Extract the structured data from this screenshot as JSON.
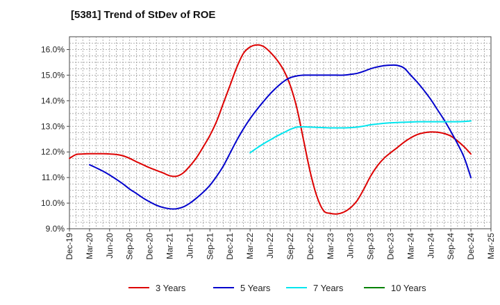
{
  "chart_data": {
    "type": "line",
    "title": "[5381]  Trend of StDev of ROE",
    "xlabel": "",
    "ylabel": "",
    "x_ticks": [
      "Dec-19",
      "Mar-20",
      "Jun-20",
      "Sep-20",
      "Dec-20",
      "Mar-21",
      "Jun-21",
      "Sep-21",
      "Dec-21",
      "Mar-22",
      "Jun-22",
      "Sep-22",
      "Dec-22",
      "Mar-23",
      "Jun-23",
      "Sep-23",
      "Dec-23",
      "Mar-24",
      "Jun-24",
      "Sep-24",
      "Dec-24",
      "Mar-25"
    ],
    "y_ticks": [
      "9.0%",
      "10.0%",
      "11.0%",
      "12.0%",
      "13.0%",
      "14.0%",
      "15.0%",
      "16.0%"
    ],
    "ylim": [
      9.0,
      16.5
    ],
    "grid": true,
    "legend_position": "bottom",
    "series": [
      {
        "name": "3 Years",
        "color": "#dd0000",
        "points": [
          [
            "Dec-19",
            11.75
          ],
          [
            "Jan-20",
            11.9
          ],
          [
            "Feb-20",
            11.92
          ],
          [
            "Mar-20",
            11.93
          ],
          [
            "Apr-20",
            11.93
          ],
          [
            "May-20",
            11.93
          ],
          [
            "Jun-20",
            11.92
          ],
          [
            "Jul-20",
            11.9
          ],
          [
            "Aug-20",
            11.85
          ],
          [
            "Sep-20",
            11.75
          ],
          [
            "Oct-20",
            11.62
          ],
          [
            "Nov-20",
            11.5
          ],
          [
            "Dec-20",
            11.38
          ],
          [
            "Jan-21",
            11.28
          ],
          [
            "Feb-21",
            11.18
          ],
          [
            "Mar-21",
            11.07
          ],
          [
            "Apr-21",
            11.05
          ],
          [
            "May-21",
            11.18
          ],
          [
            "Jun-21",
            11.45
          ],
          [
            "Jul-21",
            11.78
          ],
          [
            "Aug-21",
            12.2
          ],
          [
            "Sep-21",
            12.65
          ],
          [
            "Oct-21",
            13.2
          ],
          [
            "Nov-21",
            13.9
          ],
          [
            "Dec-21",
            14.6
          ],
          [
            "Jan-22",
            15.3
          ],
          [
            "Feb-22",
            15.85
          ],
          [
            "Mar-22",
            16.1
          ],
          [
            "Apr-22",
            16.18
          ],
          [
            "May-22",
            16.12
          ],
          [
            "Jun-22",
            15.9
          ],
          [
            "Jul-22",
            15.6
          ],
          [
            "Aug-22",
            15.2
          ],
          [
            "Sep-22",
            14.6
          ],
          [
            "Oct-22",
            13.7
          ],
          [
            "Nov-22",
            12.45
          ],
          [
            "Dec-22",
            11.2
          ],
          [
            "Jan-23",
            10.25
          ],
          [
            "Feb-23",
            9.7
          ],
          [
            "Mar-23",
            9.6
          ],
          [
            "Apr-23",
            9.58
          ],
          [
            "May-23",
            9.65
          ],
          [
            "Jun-23",
            9.82
          ],
          [
            "Jul-23",
            10.1
          ],
          [
            "Aug-23",
            10.55
          ],
          [
            "Sep-23",
            11.05
          ],
          [
            "Oct-23",
            11.45
          ],
          [
            "Nov-23",
            11.75
          ],
          [
            "Dec-23",
            11.97
          ],
          [
            "Jan-24",
            12.17
          ],
          [
            "Feb-24",
            12.38
          ],
          [
            "Mar-24",
            12.55
          ],
          [
            "Apr-24",
            12.68
          ],
          [
            "May-24",
            12.75
          ],
          [
            "Jun-24",
            12.78
          ],
          [
            "Jul-24",
            12.77
          ],
          [
            "Aug-24",
            12.72
          ],
          [
            "Sep-24",
            12.62
          ],
          [
            "Oct-24",
            12.43
          ],
          [
            "Nov-24",
            12.2
          ],
          [
            "Dec-24",
            11.92
          ]
        ]
      },
      {
        "name": "5 Years",
        "color": "#0000cc",
        "points": [
          [
            "Mar-20",
            11.5
          ],
          [
            "Apr-20",
            11.38
          ],
          [
            "May-20",
            11.25
          ],
          [
            "Jun-20",
            11.1
          ],
          [
            "Jul-20",
            10.93
          ],
          [
            "Aug-20",
            10.75
          ],
          [
            "Sep-20",
            10.55
          ],
          [
            "Oct-20",
            10.38
          ],
          [
            "Nov-20",
            10.2
          ],
          [
            "Dec-20",
            10.05
          ],
          [
            "Jan-21",
            9.92
          ],
          [
            "Feb-21",
            9.83
          ],
          [
            "Mar-21",
            9.78
          ],
          [
            "Apr-21",
            9.78
          ],
          [
            "May-21",
            9.85
          ],
          [
            "Jun-21",
            10.0
          ],
          [
            "Jul-21",
            10.2
          ],
          [
            "Aug-21",
            10.43
          ],
          [
            "Sep-21",
            10.7
          ],
          [
            "Oct-21",
            11.05
          ],
          [
            "Nov-21",
            11.45
          ],
          [
            "Dec-21",
            11.95
          ],
          [
            "Jan-22",
            12.45
          ],
          [
            "Feb-22",
            12.9
          ],
          [
            "Mar-22",
            13.3
          ],
          [
            "Apr-22",
            13.65
          ],
          [
            "May-22",
            13.97
          ],
          [
            "Jun-22",
            14.27
          ],
          [
            "Jul-22",
            14.53
          ],
          [
            "Aug-22",
            14.75
          ],
          [
            "Sep-22",
            14.9
          ],
          [
            "Oct-22",
            14.97
          ],
          [
            "Nov-22",
            15.0
          ],
          [
            "Dec-22",
            15.0
          ],
          [
            "Jan-23",
            15.0
          ],
          [
            "Feb-23",
            15.0
          ],
          [
            "Mar-23",
            15.0
          ],
          [
            "Apr-23",
            15.0
          ],
          [
            "May-23",
            15.0
          ],
          [
            "Jun-23",
            15.03
          ],
          [
            "Jul-23",
            15.07
          ],
          [
            "Aug-23",
            15.15
          ],
          [
            "Sep-23",
            15.25
          ],
          [
            "Oct-23",
            15.32
          ],
          [
            "Nov-23",
            15.37
          ],
          [
            "Dec-23",
            15.39
          ],
          [
            "Jan-24",
            15.38
          ],
          [
            "Feb-24",
            15.28
          ],
          [
            "Mar-24",
            15.0
          ],
          [
            "Apr-24",
            14.72
          ],
          [
            "May-24",
            14.4
          ],
          [
            "Jun-24",
            14.05
          ],
          [
            "Jul-24",
            13.65
          ],
          [
            "Aug-24",
            13.25
          ],
          [
            "Sep-24",
            12.8
          ],
          [
            "Oct-24",
            12.32
          ],
          [
            "Nov-24",
            11.78
          ],
          [
            "Dec-24",
            11.0
          ]
        ]
      },
      {
        "name": "7 Years",
        "color": "#00e5ee",
        "points": [
          [
            "Mar-22",
            11.97
          ],
          [
            "Apr-22",
            12.15
          ],
          [
            "May-22",
            12.32
          ],
          [
            "Jun-22",
            12.47
          ],
          [
            "Jul-22",
            12.62
          ],
          [
            "Aug-22",
            12.75
          ],
          [
            "Sep-22",
            12.88
          ],
          [
            "Oct-22",
            12.97
          ],
          [
            "Nov-22",
            12.98
          ],
          [
            "Dec-22",
            12.97
          ],
          [
            "Jan-23",
            12.96
          ],
          [
            "Feb-23",
            12.95
          ],
          [
            "Mar-23",
            12.94
          ],
          [
            "Apr-23",
            12.94
          ],
          [
            "May-23",
            12.94
          ],
          [
            "Jun-23",
            12.95
          ],
          [
            "Jul-23",
            12.97
          ],
          [
            "Aug-23",
            13.01
          ],
          [
            "Sep-23",
            13.06
          ],
          [
            "Oct-23",
            13.09
          ],
          [
            "Nov-23",
            13.12
          ],
          [
            "Dec-23",
            13.14
          ],
          [
            "Jan-24",
            13.15
          ],
          [
            "Feb-24",
            13.16
          ],
          [
            "Mar-24",
            13.17
          ],
          [
            "Apr-24",
            13.18
          ],
          [
            "May-24",
            13.18
          ],
          [
            "Jun-24",
            13.18
          ],
          [
            "Jul-24",
            13.18
          ],
          [
            "Aug-24",
            13.18
          ],
          [
            "Sep-24",
            13.18
          ],
          [
            "Oct-24",
            13.18
          ],
          [
            "Nov-24",
            13.19
          ],
          [
            "Dec-24",
            13.21
          ]
        ]
      },
      {
        "name": "10 Years",
        "color": "#008000",
        "points": []
      }
    ]
  }
}
